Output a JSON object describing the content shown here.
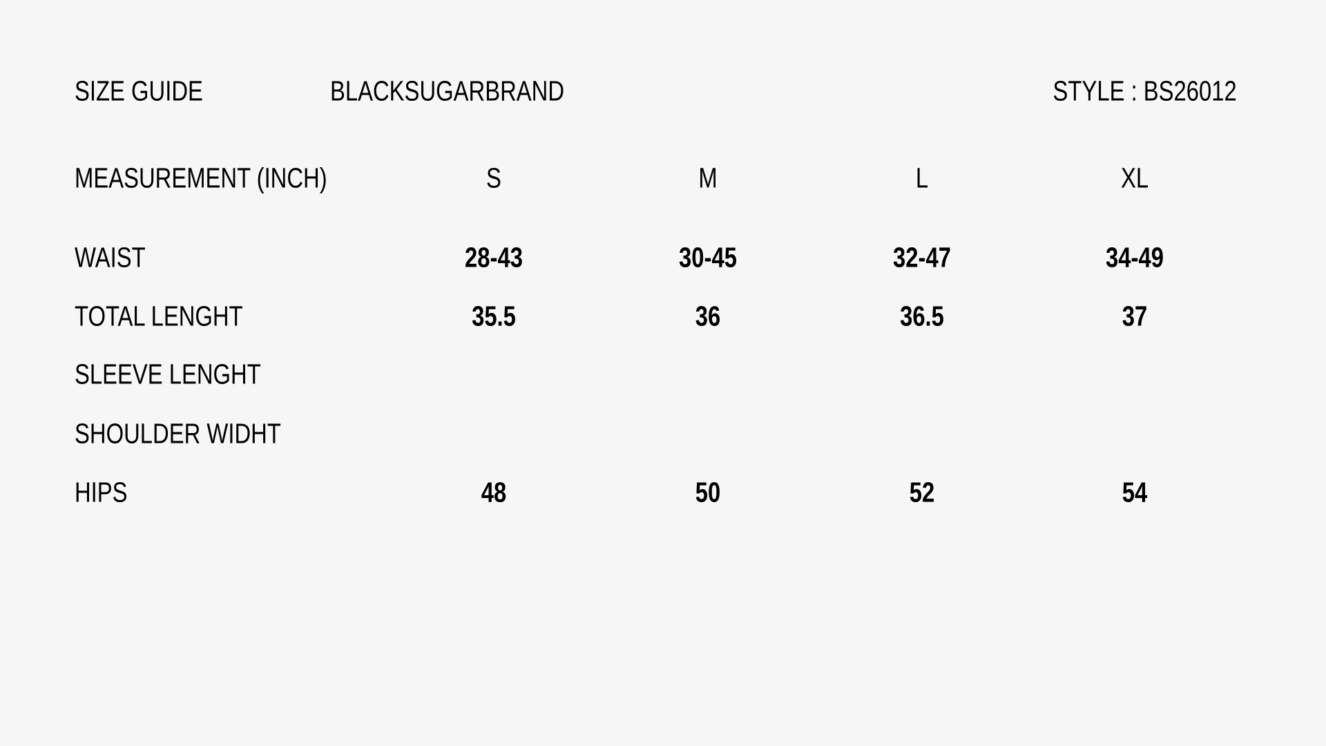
{
  "header": {
    "title": "SIZE GUIDE",
    "brand": "BLACKSUGARBRAND",
    "style": "STYLE : BS26012"
  },
  "table": {
    "header_label": "MEASUREMENT (INCH)",
    "sizes": [
      "S",
      "M",
      "L",
      "XL"
    ],
    "rows": [
      {
        "label": "WAIST",
        "values": [
          "28-43",
          "30-45",
          "32-47",
          "34-49"
        ]
      },
      {
        "label": "TOTAL LENGHT",
        "values": [
          "35.5",
          "36",
          "36.5",
          "37"
        ]
      },
      {
        "label": "SLEEVE LENGHT",
        "values": [
          "",
          "",
          "",
          ""
        ]
      },
      {
        "label": "SHOULDER WIDHT",
        "values": [
          "",
          "",
          "",
          ""
        ]
      },
      {
        "label": "HIPS",
        "values": [
          "48",
          "50",
          "52",
          "54"
        ]
      }
    ]
  },
  "colors": {
    "background": "#f6f6f6",
    "text": "#000000"
  }
}
